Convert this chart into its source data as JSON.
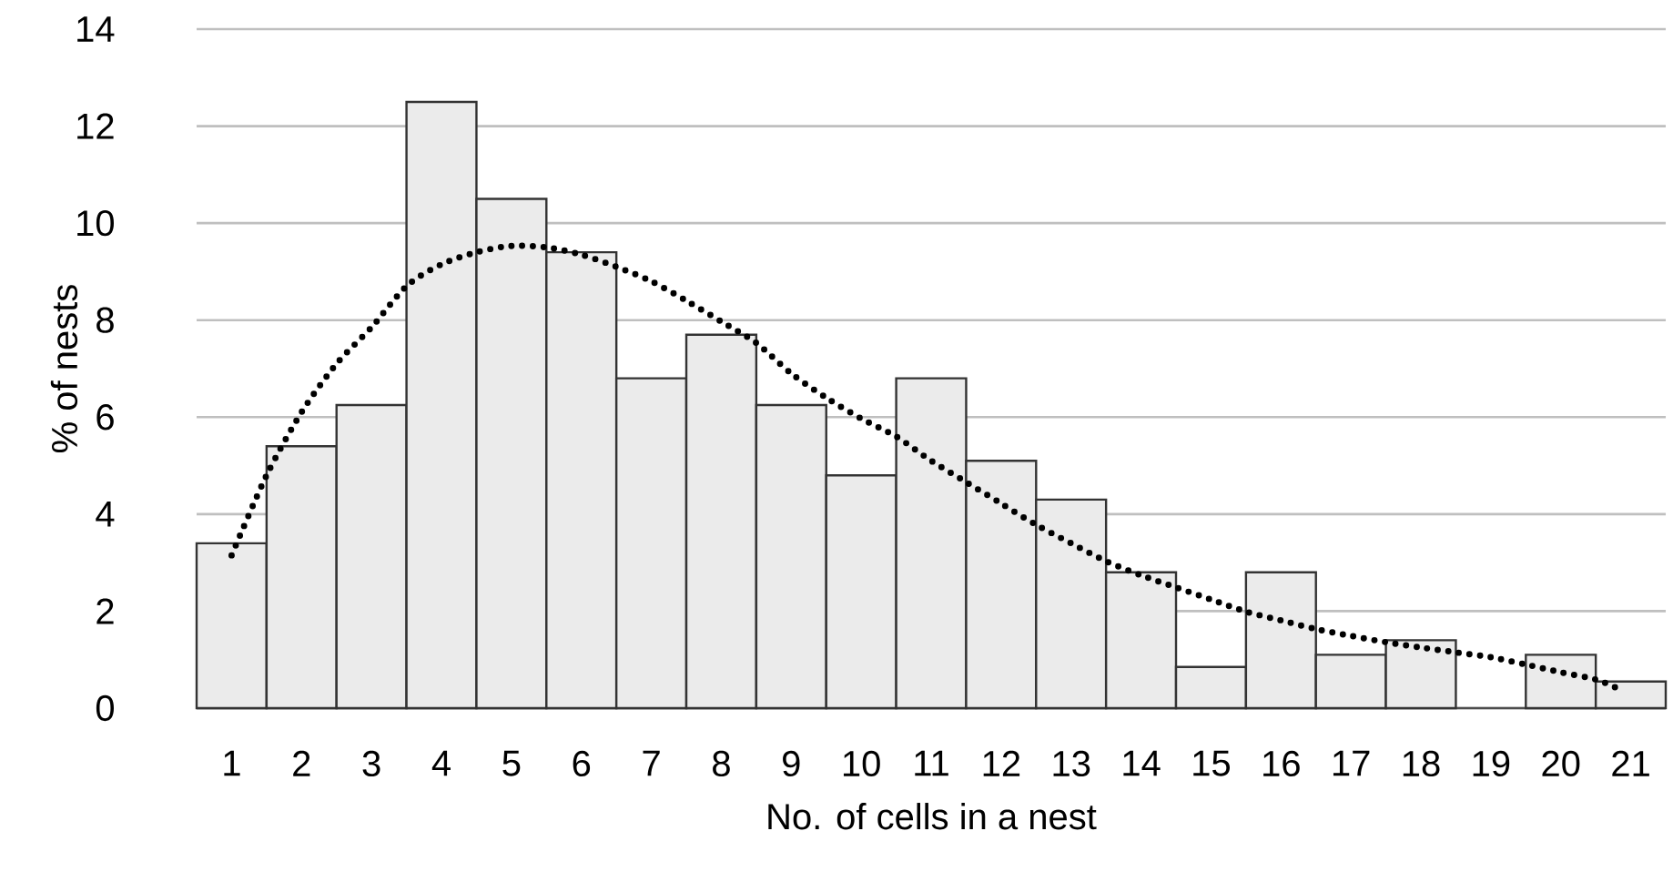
{
  "chart_data": {
    "type": "bar",
    "xlabel": "No. of cells in a nest",
    "ylabel": "% of nests",
    "x": [
      1,
      2,
      3,
      4,
      5,
      6,
      7,
      8,
      9,
      10,
      11,
      12,
      13,
      14,
      15,
      16,
      17,
      18,
      19,
      20,
      21
    ],
    "xlim": [
      0.5,
      21.5
    ],
    "xticks": [
      1,
      2,
      3,
      4,
      5,
      6,
      7,
      8,
      9,
      10,
      11,
      12,
      13,
      14,
      15,
      16,
      17,
      18,
      19,
      20,
      21
    ],
    "ylim": [
      0,
      14
    ],
    "yticks": [
      0,
      2,
      4,
      6,
      8,
      10,
      12,
      14
    ],
    "grid": "y",
    "series": [
      {
        "color": "#ebebeb",
        "values": [
          3.4,
          5.4,
          6.25,
          12.5,
          10.5,
          9.4,
          6.8,
          7.7,
          6.25,
          4.8,
          6.8,
          5.1,
          4.3,
          2.8,
          0.85,
          2.8,
          1.1,
          1.4,
          null,
          1.1,
          0.55
        ]
      },
      {
        "type": "line",
        "color": "#000000",
        "line_style": "dotted",
        "marker": "none",
        "x": [
          1,
          1.5,
          2,
          2.5,
          3,
          3.5,
          4,
          4.5,
          5,
          5.5,
          6,
          6.5,
          7,
          7.5,
          8,
          8.5,
          9,
          9.5,
          10,
          10.5,
          11,
          11.5,
          12,
          12.5,
          13,
          13.5,
          14,
          14.5,
          15,
          15.5,
          16,
          16.5,
          17,
          17.5,
          18,
          18.5,
          19,
          19.5,
          20,
          20.5,
          20.85
        ],
        "values": [
          3.15,
          4.8,
          6.1,
          7.1,
          7.85,
          8.7,
          9.15,
          9.4,
          9.53,
          9.5,
          9.35,
          9.1,
          8.8,
          8.4,
          7.97,
          7.53,
          6.9,
          6.4,
          5.97,
          5.6,
          5.1,
          4.66,
          4.22,
          3.78,
          3.4,
          3.03,
          2.74,
          2.49,
          2.24,
          1.99,
          1.81,
          1.63,
          1.49,
          1.36,
          1.25,
          1.15,
          1.05,
          0.9,
          0.74,
          0.59,
          0.38
        ]
      }
    ]
  }
}
